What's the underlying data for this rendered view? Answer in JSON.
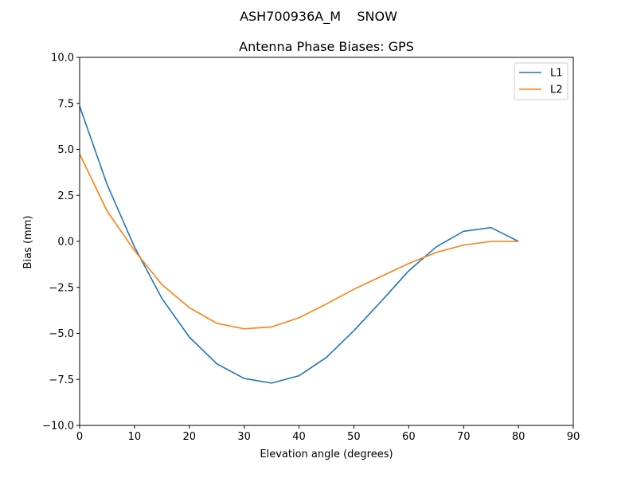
{
  "suptitle": "ASH700936A_M    SNOW",
  "chart_data": {
    "type": "line",
    "title": "Antenna Phase Biases: GPS",
    "xlabel": "Elevation angle (degrees)",
    "ylabel": "Bias (mm)",
    "xlim": [
      0,
      90
    ],
    "ylim": [
      -10,
      10
    ],
    "xticks": [
      0,
      10,
      20,
      30,
      40,
      50,
      60,
      70,
      80,
      90
    ],
    "xtick_labels": [
      "0",
      "10",
      "20",
      "30",
      "40",
      "50",
      "60",
      "70",
      "80",
      "90"
    ],
    "yticks": [
      -10,
      -7.5,
      -5,
      -2.5,
      0,
      2.5,
      5,
      7.5,
      10
    ],
    "ytick_labels": [
      "−10.0",
      "−7.5",
      "−5.0",
      "−2.5",
      "0.0",
      "2.5",
      "5.0",
      "7.5",
      "10.0"
    ],
    "grid": false,
    "legend_position": "top-right",
    "x": [
      0,
      5,
      10,
      15,
      20,
      25,
      30,
      35,
      40,
      45,
      50,
      55,
      60,
      65,
      70,
      75,
      80
    ],
    "series": [
      {
        "name": "L1",
        "color": "#1f77b4",
        "values": [
          7.35,
          3.1,
          -0.3,
          -3.1,
          -5.2,
          -6.65,
          -7.45,
          -7.7,
          -7.3,
          -6.3,
          -4.85,
          -3.25,
          -1.6,
          -0.3,
          0.55,
          0.75,
          0.0
        ]
      },
      {
        "name": "L2",
        "color": "#ff7f0e",
        "values": [
          4.75,
          1.65,
          -0.5,
          -2.35,
          -3.6,
          -4.45,
          -4.75,
          -4.65,
          -4.15,
          -3.4,
          -2.6,
          -1.9,
          -1.2,
          -0.6,
          -0.2,
          0.0,
          0.0
        ]
      }
    ]
  }
}
